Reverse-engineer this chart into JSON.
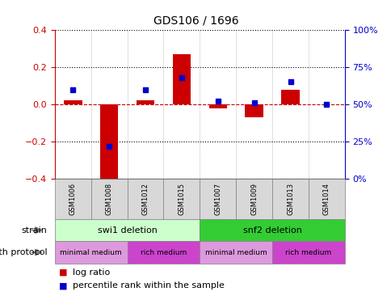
{
  "title": "GDS106 / 1696",
  "samples": [
    "GSM1006",
    "GSM1008",
    "GSM1012",
    "GSM1015",
    "GSM1007",
    "GSM1009",
    "GSM1013",
    "GSM1014"
  ],
  "log_ratio": [
    0.02,
    -0.42,
    0.02,
    0.27,
    -0.02,
    -0.07,
    0.08,
    0.0
  ],
  "percentile_rank": [
    60,
    22,
    60,
    68,
    52,
    51,
    65,
    50
  ],
  "ylim_left": [
    -0.4,
    0.4
  ],
  "ylim_right": [
    0,
    100
  ],
  "yticks_left": [
    -0.4,
    -0.2,
    0.0,
    0.2,
    0.4
  ],
  "yticks_right": [
    0,
    25,
    50,
    75,
    100
  ],
  "ytick_labels_right": [
    "0%",
    "25%",
    "50%",
    "75%",
    "100%"
  ],
  "bar_color": "#cc0000",
  "dot_color": "#0000cc",
  "zero_line_color": "#cc0000",
  "dotted_line_color": "#000000",
  "strain_groups": [
    {
      "label": "swi1 deletion",
      "start": 0,
      "end": 4,
      "color": "#ccffcc"
    },
    {
      "label": "snf2 deletion",
      "start": 4,
      "end": 8,
      "color": "#33cc33"
    }
  ],
  "growth_protocol_groups": [
    {
      "label": "minimal medium",
      "start": 0,
      "end": 2,
      "color": "#dd99dd"
    },
    {
      "label": "rich medium",
      "start": 2,
      "end": 4,
      "color": "#cc44cc"
    },
    {
      "label": "minimal medium",
      "start": 4,
      "end": 6,
      "color": "#dd99dd"
    },
    {
      "label": "rich medium",
      "start": 6,
      "end": 8,
      "color": "#cc44cc"
    }
  ],
  "legend_log_ratio": "log ratio",
  "legend_percentile": "percentile rank within the sample",
  "xlabel_strain": "strain",
  "xlabel_growth": "growth protocol",
  "title_color": "#000000",
  "left_axis_color": "#cc0000",
  "right_axis_color": "#0000cc",
  "sample_bg_color": "#d8d8d8",
  "bar_width": 0.5
}
